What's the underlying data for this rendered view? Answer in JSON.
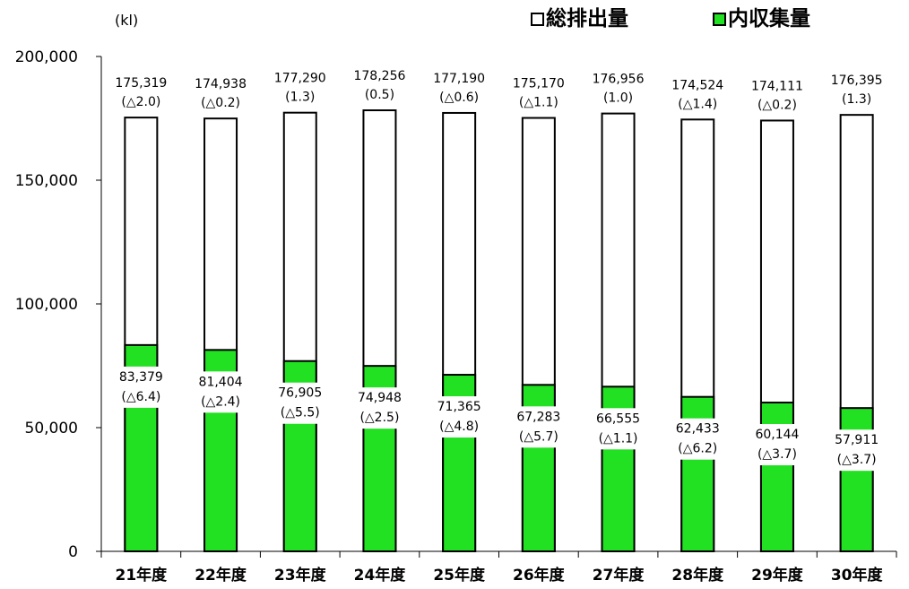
{
  "chart_data": {
    "type": "bar",
    "stacked": false,
    "unit_label": "(kl)",
    "ylim": [
      0,
      200000
    ],
    "yticks": [
      "0",
      "50,000",
      "100,000",
      "150,000",
      "200,000"
    ],
    "ytick_values": [
      0,
      50000,
      100000,
      150000,
      200000
    ],
    "categories": [
      "21年度",
      "22年度",
      "23年度",
      "24年度",
      "25年度",
      "26年度",
      "27年度",
      "28年度",
      "29年度",
      "30年度"
    ],
    "legend_position": "top-right",
    "series": [
      {
        "name": "総排出量",
        "color": "#ffffff",
        "values": [
          175319,
          174938,
          177290,
          178256,
          177190,
          175170,
          176956,
          174524,
          174111,
          176395
        ],
        "value_labels": [
          "175,319",
          "174,938",
          "177,290",
          "178,256",
          "177,190",
          "175,170",
          "176,956",
          "174,524",
          "174,111",
          "176,395"
        ],
        "change_labels": [
          "(△2.0)",
          "(△0.2)",
          "(1.3)",
          "(0.5)",
          "(△0.6)",
          "(△1.1)",
          "(1.0)",
          "(△1.4)",
          "(△0.2)",
          "(1.3)"
        ]
      },
      {
        "name": "内収集量",
        "color": "#22e022",
        "values": [
          83379,
          81404,
          76905,
          74948,
          71365,
          67283,
          66555,
          62433,
          60144,
          57911
        ],
        "value_labels": [
          "83,379",
          "81,404",
          "76,905",
          "74,948",
          "71,365",
          "67,283",
          "66,555",
          "62,433",
          "60,144",
          "57,911"
        ],
        "change_labels": [
          "(△6.4)",
          "(△2.4)",
          "(△5.5)",
          "(△2.5)",
          "(△4.8)",
          "(△5.7)",
          "(△1.1)",
          "(△6.2)",
          "(△3.7)",
          "(△3.7)"
        ]
      }
    ]
  }
}
